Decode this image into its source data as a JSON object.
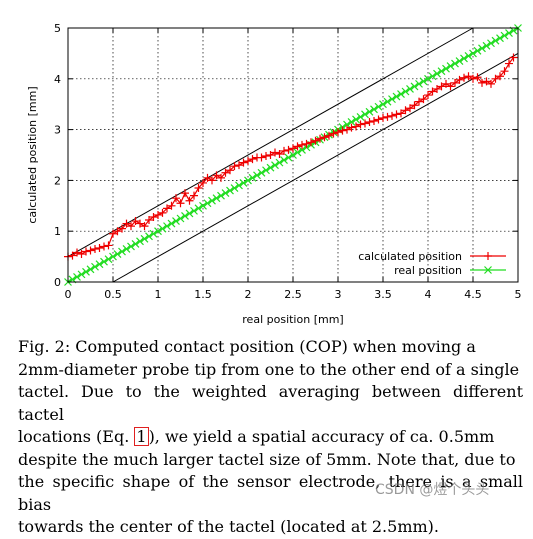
{
  "chart_data": {
    "type": "line",
    "xlabel": "real position [mm]",
    "ylabel": "calculated position [mm]",
    "xlim": [
      0,
      5
    ],
    "ylim": [
      0,
      5
    ],
    "xticks": [
      "0",
      "0.5",
      "1",
      "1.5",
      "2",
      "2.5",
      "3",
      "3.5",
      "4",
      "4.5",
      "5"
    ],
    "yticks": [
      "0",
      "1",
      "2",
      "3",
      "4",
      "5"
    ],
    "grid": true,
    "legend_position": "bottom-right",
    "series": [
      {
        "name": "calculated position",
        "color": "#ee0000",
        "marker": "plus",
        "x": [
          0,
          0.05,
          0.1,
          0.15,
          0.2,
          0.25,
          0.3,
          0.35,
          0.4,
          0.45,
          0.5,
          0.55,
          0.6,
          0.65,
          0.7,
          0.75,
          0.8,
          0.85,
          0.9,
          0.95,
          1,
          1.05,
          1.1,
          1.15,
          1.2,
          1.25,
          1.3,
          1.35,
          1.4,
          1.45,
          1.5,
          1.55,
          1.6,
          1.65,
          1.7,
          1.75,
          1.8,
          1.85,
          1.9,
          1.95,
          2,
          2.05,
          2.1,
          2.15,
          2.2,
          2.25,
          2.3,
          2.35,
          2.4,
          2.45,
          2.5,
          2.55,
          2.6,
          2.65,
          2.7,
          2.75,
          2.8,
          2.85,
          2.9,
          2.95,
          3,
          3.05,
          3.1,
          3.15,
          3.2,
          3.25,
          3.3,
          3.35,
          3.4,
          3.45,
          3.5,
          3.55,
          3.6,
          3.65,
          3.7,
          3.75,
          3.8,
          3.85,
          3.9,
          3.95,
          4,
          4.05,
          4.1,
          4.15,
          4.2,
          4.25,
          4.3,
          4.35,
          4.4,
          4.45,
          4.5,
          4.55,
          4.6,
          4.65,
          4.7,
          4.75,
          4.8,
          4.85,
          4.9,
          4.95
        ],
        "y": [
          0.5,
          0.52,
          0.58,
          0.55,
          0.6,
          0.62,
          0.65,
          0.67,
          0.7,
          0.72,
          0.95,
          1.0,
          1.05,
          1.15,
          1.1,
          1.2,
          1.15,
          1.1,
          1.22,
          1.28,
          1.32,
          1.36,
          1.45,
          1.5,
          1.65,
          1.55,
          1.75,
          1.6,
          1.7,
          1.85,
          1.95,
          2.05,
          2.0,
          2.1,
          2.05,
          2.15,
          2.2,
          2.28,
          2.3,
          2.35,
          2.38,
          2.42,
          2.45,
          2.45,
          2.48,
          2.5,
          2.55,
          2.52,
          2.58,
          2.6,
          2.63,
          2.67,
          2.7,
          2.72,
          2.75,
          2.78,
          2.82,
          2.85,
          2.88,
          2.92,
          2.95,
          2.98,
          3.0,
          3.04,
          3.06,
          3.1,
          3.12,
          3.15,
          3.17,
          3.2,
          3.23,
          3.25,
          3.27,
          3.3,
          3.32,
          3.38,
          3.42,
          3.48,
          3.55,
          3.6,
          3.68,
          3.75,
          3.8,
          3.85,
          3.9,
          3.85,
          3.92,
          3.98,
          4.02,
          4.05,
          4.0,
          4.03,
          3.92,
          3.95,
          3.9,
          4.0,
          4.05,
          4.15,
          4.3,
          4.42
        ]
      },
      {
        "name": "real position",
        "color": "#22dd22",
        "marker": "cross",
        "x_start": 0,
        "x_end": 5,
        "step": 0.05,
        "slope": 1,
        "intercept": 0
      }
    ],
    "bounds": [
      {
        "slope": 1,
        "intercept": 0.5,
        "color": "#000000"
      },
      {
        "slope": 1,
        "intercept": -0.5,
        "color": "#000000"
      }
    ]
  },
  "caption": {
    "l1": "Fig. 2: Computed contact position (COP) when moving a",
    "l2": "2mm-diameter probe tip from one to the other end of a single",
    "l3": "tactel. Due to the weighted averaging between different tactel",
    "l4a": "locations (Eq. ",
    "l4ref": "1",
    "l4b": "), we yield a spatial accuracy of ca. 0.5mm",
    "l5": "despite the much larger tactel size of 5mm. Note that, due to",
    "l6": "the specific shape of the sensor electrode, there is a small bias",
    "l7": "towards the center of the tactel (located at 2.5mm)."
  },
  "watermark": "CSDN @煜个头头"
}
